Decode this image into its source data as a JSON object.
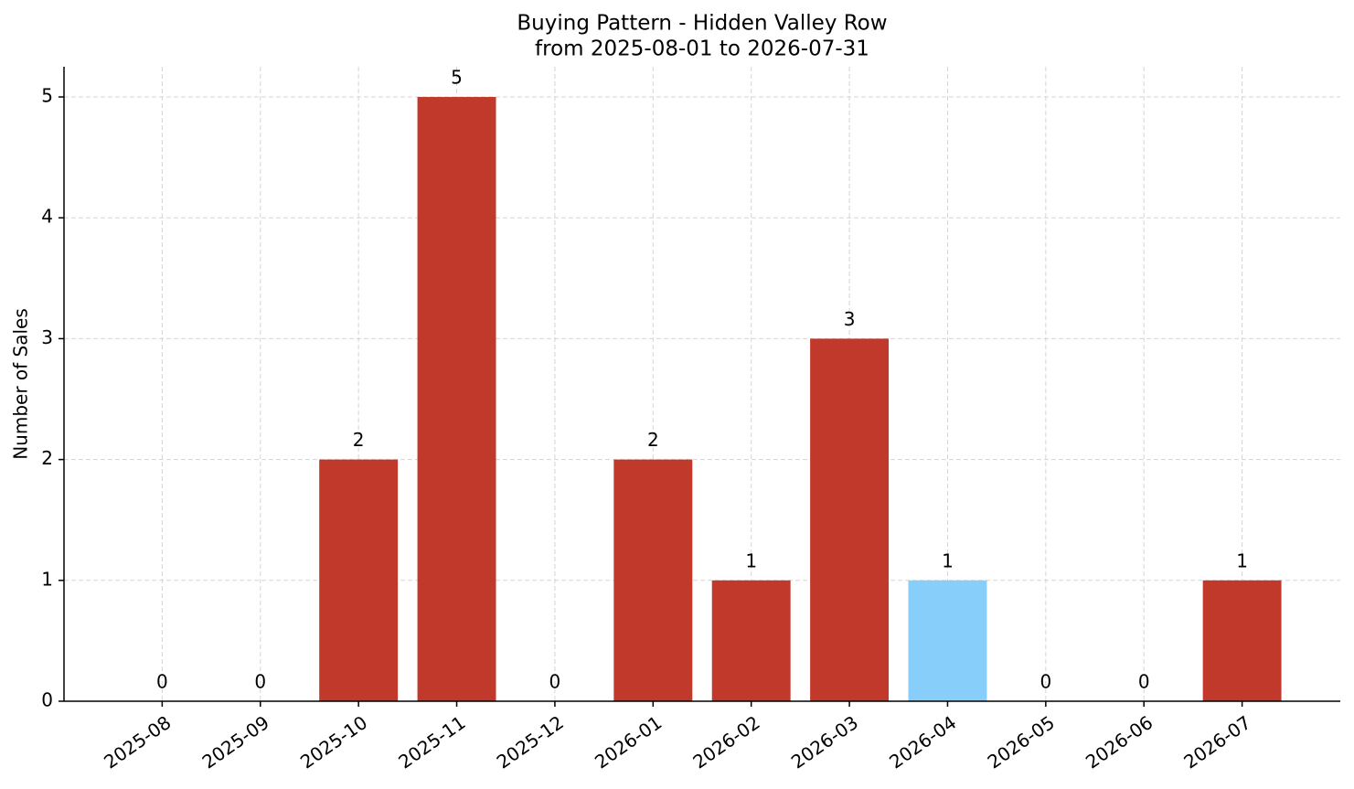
{
  "chart_data": {
    "type": "bar",
    "title": "Buying Pattern - Hidden Valley Row",
    "subtitle": "from 2025-08-01 to 2026-07-31",
    "y_label": "Number of Sales",
    "categories": [
      "2025-08",
      "2025-09",
      "2025-10",
      "2025-11",
      "2025-12",
      "2026-01",
      "2026-02",
      "2026-03",
      "2026-04",
      "2026-05",
      "2026-06",
      "2026-07"
    ],
    "values": [
      0,
      0,
      2,
      5,
      0,
      2,
      1,
      3,
      1,
      0,
      0,
      1
    ],
    "colors": [
      "#c0392b",
      "#c0392b",
      "#c0392b",
      "#c0392b",
      "#c0392b",
      "#c0392b",
      "#c0392b",
      "#c0392b",
      "#87cefa",
      "#c0392b",
      "#c0392b",
      "#c0392b"
    ],
    "ylim": [
      0,
      5.25
    ],
    "yticks": [
      0,
      1,
      2,
      3,
      4,
      5
    ],
    "grid": true
  }
}
